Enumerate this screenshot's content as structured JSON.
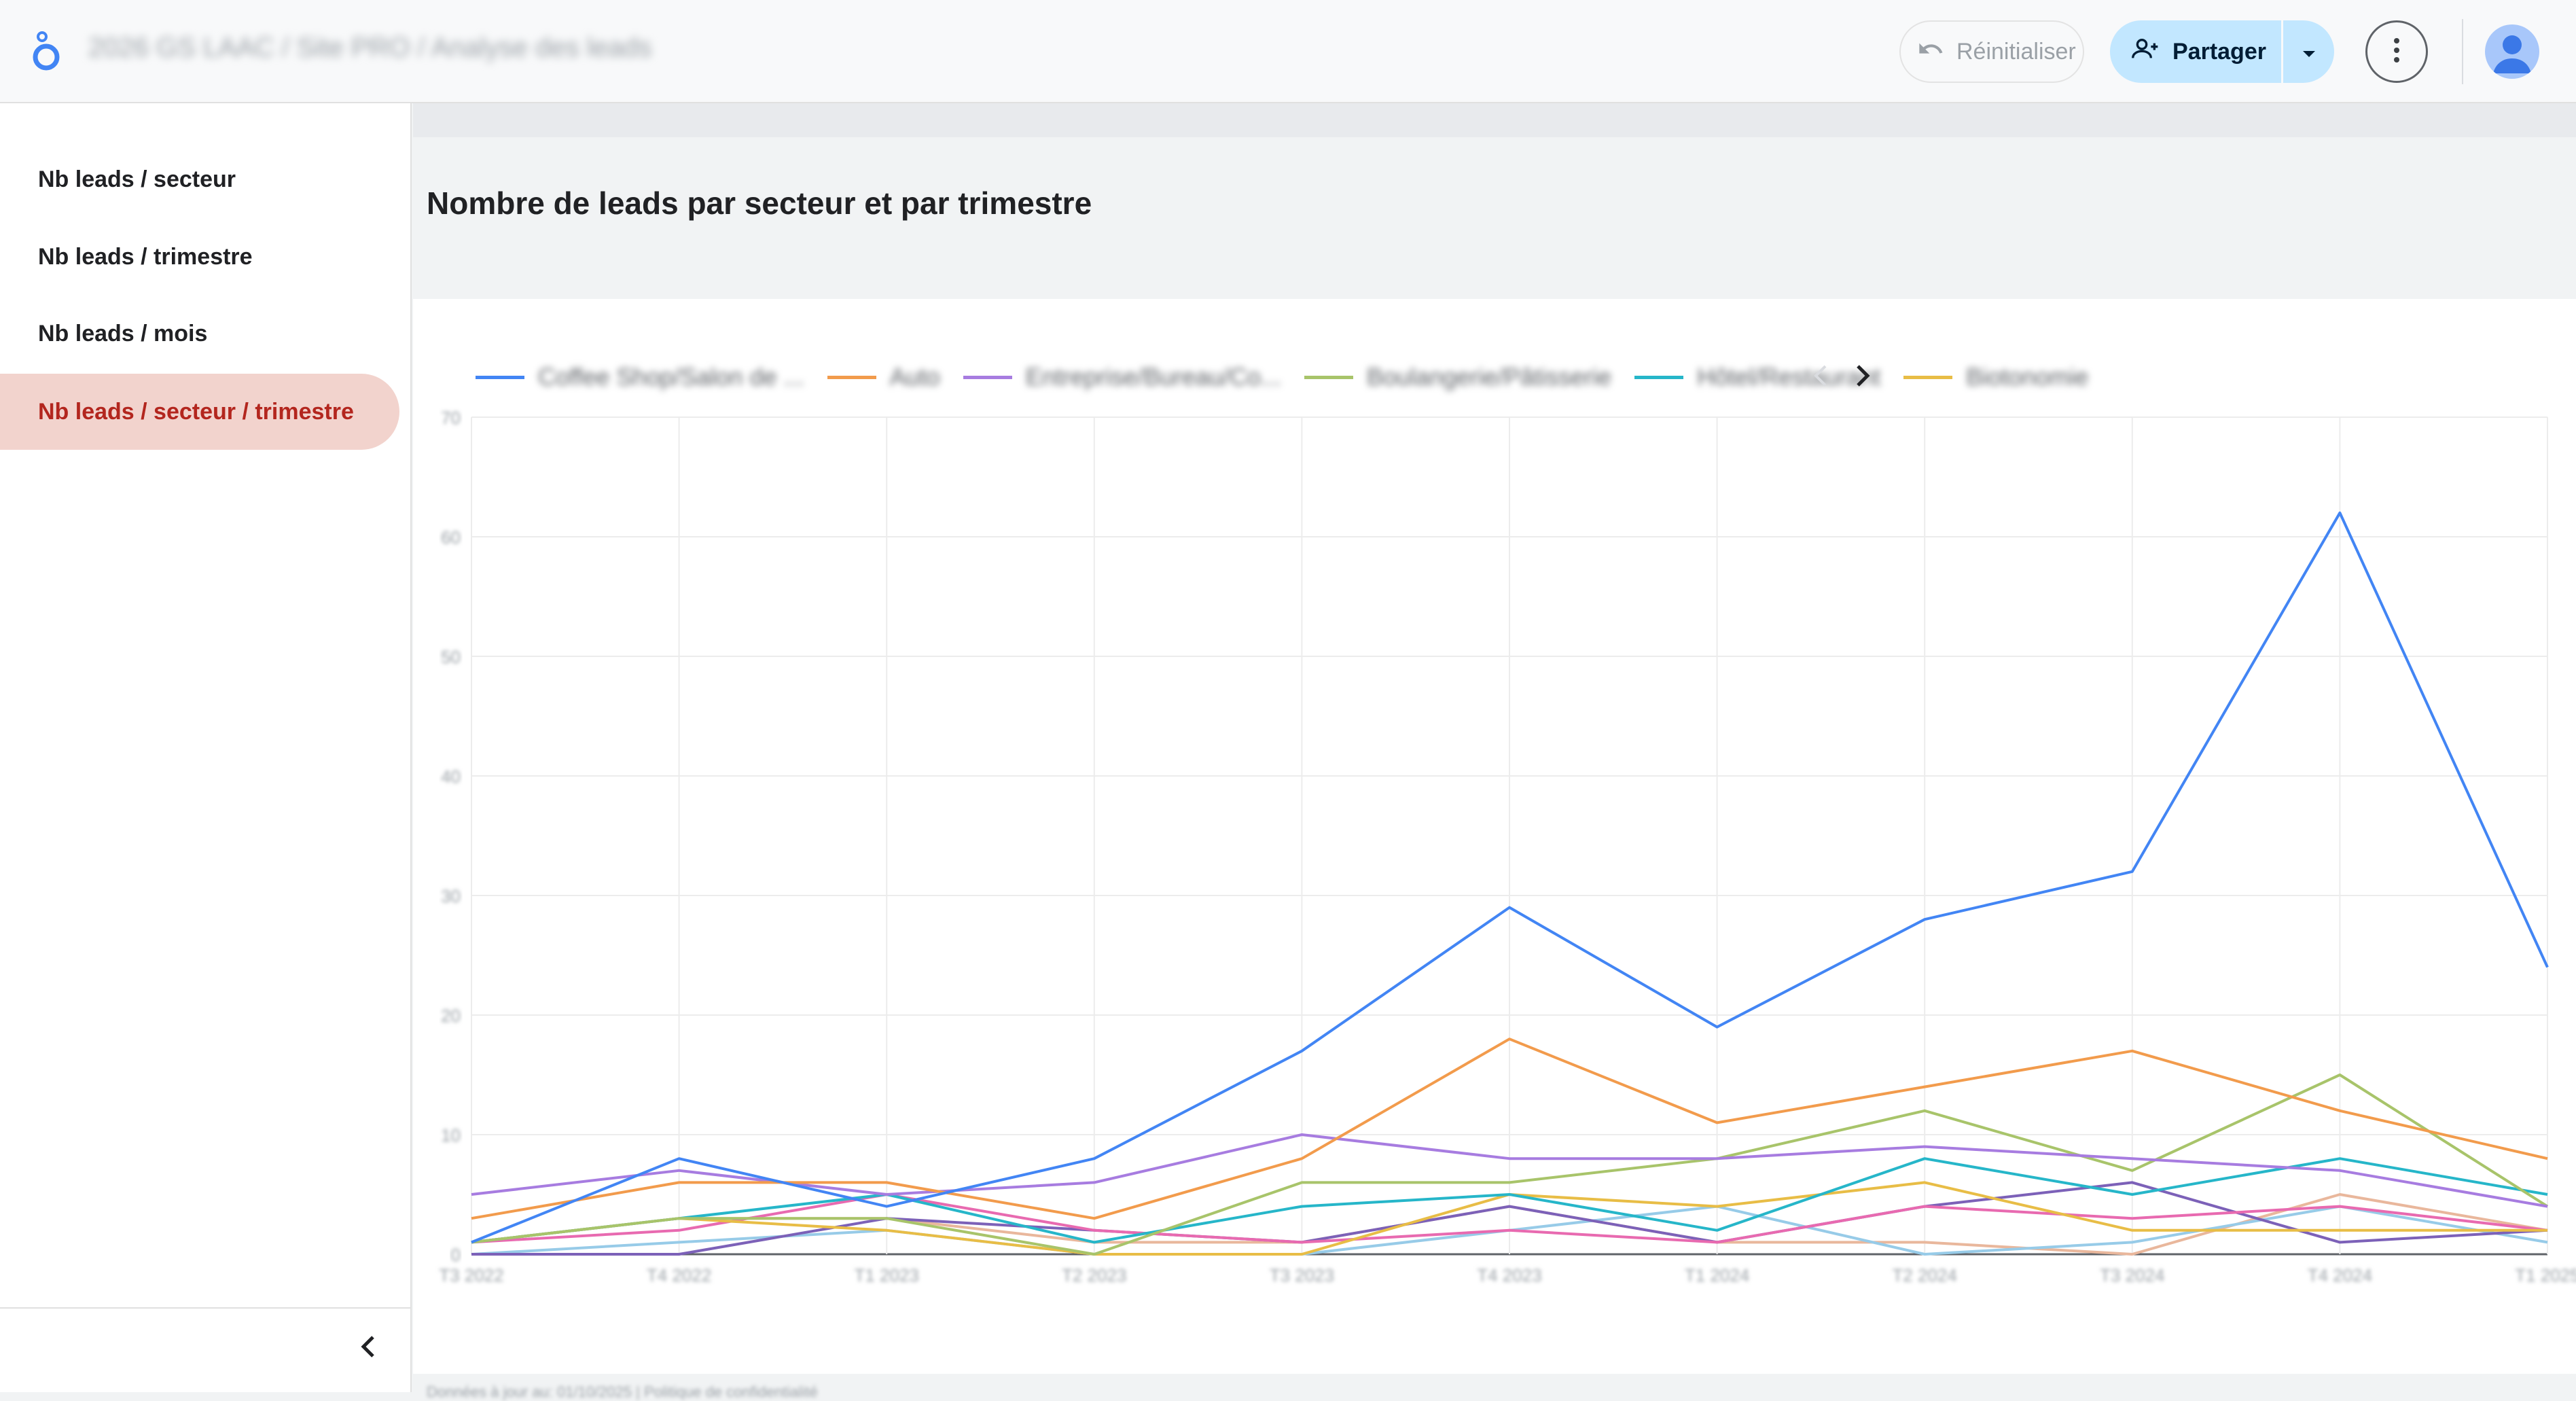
{
  "header": {
    "title": "2026 GS LAAC / Site PRO / Analyse des leads",
    "reset_label": "Réinitialiser",
    "share_label": "Partager"
  },
  "sidebar": {
    "items": [
      {
        "label": "Nb leads / secteur",
        "active": false
      },
      {
        "label": "Nb leads / trimestre",
        "active": false
      },
      {
        "label": "Nb leads / mois",
        "active": false
      },
      {
        "label": "Nb leads / secteur / trimestre",
        "active": true
      }
    ]
  },
  "main": {
    "chart_title": "Nombre de leads par secteur et par trimestre",
    "footer_text": "Données à jour au: 01/10/2025 | Politique de confidentialité"
  },
  "colors": {
    "accent": "#c2e7ff",
    "active_nav_bg": "#f2d3cd",
    "active_nav_text": "#b3261e"
  },
  "chart_data": {
    "type": "line",
    "x": [
      "T3 2022",
      "T4 2022",
      "T1 2023",
      "T2 2023",
      "T3 2023",
      "T4 2023",
      "T1 2024",
      "T2 2024",
      "T3 2024",
      "T4 2024",
      "T1 2025"
    ],
    "ylim": [
      0,
      70
    ],
    "yticks": [
      0,
      10,
      20,
      30,
      40,
      50,
      60,
      70
    ],
    "grid": true,
    "legend_position": "top",
    "series": [
      {
        "name": "Coffee Shop/Salon de ...",
        "color": "#4285f4",
        "values": [
          1,
          8,
          4,
          8,
          17,
          29,
          19,
          28,
          32,
          62,
          24
        ]
      },
      {
        "name": "Auto",
        "color": "#f29b4c",
        "values": [
          3,
          6,
          6,
          3,
          8,
          18,
          11,
          14,
          17,
          12,
          8
        ]
      },
      {
        "name": "Entreprise/Bureau/Co...",
        "color": "#a77ce0",
        "values": [
          5,
          7,
          5,
          6,
          10,
          8,
          8,
          9,
          8,
          7,
          4
        ]
      },
      {
        "name": "Boulangerie/Pâtisserie",
        "color": "#a8c46a",
        "values": [
          1,
          3,
          3,
          0,
          6,
          6,
          8,
          12,
          7,
          15,
          4
        ]
      },
      {
        "name": "Hôtel/Restaurant",
        "color": "#26b6c9",
        "values": [
          1,
          3,
          5,
          1,
          4,
          5,
          2,
          8,
          5,
          8,
          5
        ]
      },
      {
        "name": "Biotonomie",
        "color": "#e8bd46",
        "values": [
          1,
          3,
          2,
          0,
          0,
          5,
          4,
          6,
          2,
          2,
          2
        ]
      },
      {
        "name": "",
        "color": "#e86ab0",
        "values": [
          1,
          2,
          5,
          2,
          1,
          2,
          1,
          4,
          3,
          4,
          2
        ]
      },
      {
        "name": "",
        "color": "#7c61b8",
        "values": [
          0,
          0,
          3,
          2,
          1,
          4,
          1,
          4,
          6,
          1,
          2
        ]
      },
      {
        "name": "",
        "color": "#97cbe8",
        "values": [
          0,
          1,
          2,
          0,
          0,
          2,
          4,
          0,
          1,
          4,
          1
        ]
      },
      {
        "name": "",
        "color": "#e9b79c",
        "values": [
          1,
          3,
          3,
          1,
          1,
          4,
          1,
          1,
          0,
          5,
          2
        ]
      }
    ]
  }
}
